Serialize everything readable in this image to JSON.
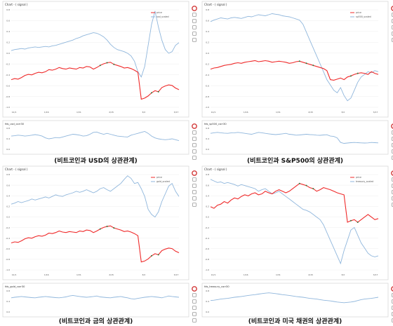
{
  "colors": {
    "price": "#ef2a2a",
    "scaled": "#8fb6dc",
    "grid": "#eeeeee",
    "frame": "#d9d9d9",
    "marker": "#2c7a3a",
    "tool_red": "#d33a3a"
  },
  "toolbar_icons": [
    "bokeh-logo-icon",
    "pan-icon",
    "box-zoom-icon",
    "wheel-zoom-icon",
    "save-icon",
    "reset-icon"
  ],
  "chart_data": [
    {
      "type": "line",
      "title": "Chart - ( signal )",
      "caption": "(비트코인과 USD의 상관관계)",
      "legend": {
        "placement": "top-right",
        "entries": [
          "price",
          "usd_scaled"
        ]
      },
      "x_ticks": [
        "12/1",
        "1/16",
        "1/31",
        "2/15",
        "3/2",
        "3/17"
      ],
      "y_ticks": [
        "0.8",
        "0.6",
        "0.4",
        "0.2",
        "0.0",
        "-0.2",
        "-0.4",
        "-0.6",
        "-0.8",
        "-1.0"
      ],
      "ylim": [
        -1.0,
        0.9
      ],
      "series": [
        {
          "name": "price",
          "values": [
            -0.45,
            -0.43,
            -0.44,
            -0.41,
            -0.37,
            -0.35,
            -0.36,
            -0.33,
            -0.31,
            -0.32,
            -0.3,
            -0.26,
            -0.27,
            -0.25,
            -0.22,
            -0.24,
            -0.25,
            -0.23,
            -0.24,
            -0.25,
            -0.22,
            -0.23,
            -0.2,
            -0.21,
            -0.25,
            -0.22,
            -0.18,
            -0.15,
            -0.13,
            -0.12,
            -0.16,
            -0.18,
            -0.2,
            -0.23,
            -0.22,
            -0.24,
            -0.27,
            -0.31,
            -0.82,
            -0.8,
            -0.76,
            -0.7,
            -0.66,
            -0.68,
            -0.6,
            -0.57,
            -0.55,
            -0.56,
            -0.61,
            -0.64
          ]
        },
        {
          "name": "usd_scaled",
          "values": [
            0.1,
            0.12,
            0.13,
            0.14,
            0.13,
            0.15,
            0.16,
            0.17,
            0.16,
            0.17,
            0.18,
            0.17,
            0.19,
            0.2,
            0.22,
            0.24,
            0.26,
            0.28,
            0.3,
            0.33,
            0.35,
            0.38,
            0.4,
            0.42,
            0.44,
            0.43,
            0.4,
            0.36,
            0.3,
            0.22,
            0.16,
            0.12,
            0.1,
            0.08,
            0.05,
            0.0,
            -0.1,
            -0.3,
            -0.4,
            -0.2,
            0.2,
            0.6,
            0.85,
            0.55,
            0.3,
            0.12,
            0.05,
            0.08,
            0.2,
            0.25
          ]
        }
      ],
      "sub_title": "fds_usd_corr30",
      "sub_ylim": [
        -0.4,
        0.9
      ],
      "sub_y_ticks": [
        "0.8",
        "0.4",
        "0.0"
      ],
      "sub_series": {
        "name": "fds_usd_corr30",
        "values": [
          0.4,
          0.42,
          0.45,
          0.43,
          0.4,
          0.42,
          0.45,
          0.48,
          0.45,
          0.4,
          0.3,
          0.25,
          0.28,
          0.32,
          0.3,
          0.35,
          0.4,
          0.45,
          0.5,
          0.48,
          0.45,
          0.4,
          0.42,
          0.5,
          0.6,
          0.62,
          0.55,
          0.5,
          0.55,
          0.5,
          0.45,
          0.4,
          0.38,
          0.36,
          0.35,
          0.45,
          0.5,
          0.55,
          0.6,
          0.65,
          0.55,
          0.4,
          0.3,
          0.25,
          0.22,
          0.2,
          0.22,
          0.25,
          0.2,
          0.15
        ]
      }
    },
    {
      "type": "line",
      "title": "Chart - ( signal )",
      "caption": "(비트코인과 S&P500의 상관관계)",
      "legend": {
        "placement": "top-right",
        "entries": [
          "price",
          "sp500_scaled"
        ]
      },
      "x_ticks": [
        "12/1",
        "1/16",
        "1/31",
        "2/15",
        "3/2",
        "3/17"
      ],
      "y_ticks": [
        "0.8",
        "0.6",
        "0.4",
        "0.2",
        "0.0",
        "-0.2",
        "-0.4",
        "-0.6",
        "-0.8",
        "-1.0"
      ],
      "ylim": [
        -1.0,
        0.9
      ],
      "series": [
        {
          "name": "price",
          "values": [
            -0.25,
            -0.23,
            -0.22,
            -0.2,
            -0.18,
            -0.17,
            -0.16,
            -0.14,
            -0.13,
            -0.14,
            -0.12,
            -0.11,
            -0.1,
            -0.09,
            -0.11,
            -0.1,
            -0.09,
            -0.1,
            -0.12,
            -0.11,
            -0.1,
            -0.11,
            -0.12,
            -0.14,
            -0.13,
            -0.11,
            -0.1,
            -0.12,
            -0.14,
            -0.16,
            -0.18,
            -0.2,
            -0.22,
            -0.24,
            -0.28,
            -0.45,
            -0.46,
            -0.44,
            -0.42,
            -0.45,
            -0.4,
            -0.38,
            -0.35,
            -0.33,
            -0.32,
            -0.33,
            -0.35,
            -0.3,
            -0.33,
            -0.35
          ]
        },
        {
          "name": "sp500_scaled",
          "values": [
            0.65,
            0.68,
            0.7,
            0.72,
            0.71,
            0.7,
            0.72,
            0.73,
            0.72,
            0.71,
            0.73,
            0.75,
            0.74,
            0.76,
            0.78,
            0.77,
            0.76,
            0.78,
            0.8,
            0.79,
            0.78,
            0.76,
            0.75,
            0.74,
            0.72,
            0.7,
            0.68,
            0.6,
            0.45,
            0.3,
            0.15,
            0.0,
            -0.15,
            -0.3,
            -0.45,
            -0.55,
            -0.65,
            -0.7,
            -0.6,
            -0.75,
            -0.85,
            -0.8,
            -0.65,
            -0.5,
            -0.4,
            -0.35,
            -0.3,
            -0.32,
            -0.28,
            -0.3
          ]
        }
      ],
      "sub_title": "fds_sp500_corr30",
      "sub_ylim": [
        -0.4,
        0.9
      ],
      "sub_y_ticks": [
        "0.8",
        "0.4",
        "0.0"
      ],
      "sub_series": {
        "name": "fds_sp500_corr30",
        "values": [
          0.55,
          0.58,
          0.6,
          0.58,
          0.56,
          0.55,
          0.57,
          0.58,
          0.6,
          0.58,
          0.55,
          0.52,
          0.5,
          0.55,
          0.6,
          0.58,
          0.55,
          0.52,
          0.5,
          0.48,
          0.5,
          0.52,
          0.55,
          0.5,
          0.48,
          0.45,
          0.46,
          0.48,
          0.5,
          0.48,
          0.47,
          0.45,
          0.44,
          0.46,
          0.47,
          0.4,
          0.38,
          0.3,
          0.05,
          0.0,
          0.02,
          0.04,
          0.05,
          0.04,
          0.03,
          0.02,
          0.03,
          0.05,
          0.04,
          0.03
        ]
      }
    },
    {
      "type": "line",
      "title": "Chart - ( signal )",
      "caption": "(비트코인과 금의 상관관계)",
      "legend": {
        "placement": "top-right",
        "entries": [
          "price",
          "gold_scaled"
        ]
      },
      "x_ticks": [
        "12/1",
        "1/16",
        "1/31",
        "2/15",
        "3/2",
        "3/17"
      ],
      "y_ticks": [
        "0.8",
        "0.6",
        "0.4",
        "0.2",
        "0.0",
        "-0.2",
        "-0.4",
        "-0.6",
        "-0.8",
        "-1.0"
      ],
      "ylim": [
        -1.0,
        0.9
      ],
      "series": [
        {
          "name": "price",
          "values": [
            -0.45,
            -0.43,
            -0.44,
            -0.41,
            -0.37,
            -0.35,
            -0.36,
            -0.33,
            -0.31,
            -0.32,
            -0.3,
            -0.26,
            -0.27,
            -0.25,
            -0.22,
            -0.24,
            -0.25,
            -0.23,
            -0.24,
            -0.25,
            -0.22,
            -0.23,
            -0.2,
            -0.21,
            -0.25,
            -0.22,
            -0.18,
            -0.15,
            -0.13,
            -0.12,
            -0.16,
            -0.18,
            -0.2,
            -0.23,
            -0.22,
            -0.24,
            -0.27,
            -0.31,
            -0.82,
            -0.8,
            -0.76,
            -0.7,
            -0.66,
            -0.68,
            -0.6,
            -0.57,
            -0.55,
            -0.56,
            -0.61,
            -0.64
          ]
        },
        {
          "name": "gold_scaled",
          "values": [
            0.3,
            0.32,
            0.35,
            0.33,
            0.35,
            0.37,
            0.4,
            0.38,
            0.4,
            0.42,
            0.44,
            0.42,
            0.45,
            0.48,
            0.46,
            0.45,
            0.48,
            0.5,
            0.52,
            0.55,
            0.53,
            0.55,
            0.58,
            0.55,
            0.52,
            0.55,
            0.6,
            0.62,
            0.58,
            0.55,
            0.6,
            0.65,
            0.7,
            0.78,
            0.85,
            0.8,
            0.7,
            0.72,
            0.6,
            0.45,
            0.2,
            0.1,
            0.05,
            0.15,
            0.35,
            0.5,
            0.65,
            0.7,
            0.55,
            0.45
          ]
        }
      ],
      "sub_title": "fds_gold_corr30",
      "sub_ylim": [
        -0.4,
        0.9
      ],
      "sub_y_ticks": [
        "0.8",
        "0.4",
        "0.0"
      ],
      "sub_series": {
        "name": "fds_gold_corr30",
        "values": [
          0.45,
          0.48,
          0.5,
          0.52,
          0.5,
          0.48,
          0.46,
          0.45,
          0.48,
          0.5,
          0.52,
          0.5,
          0.48,
          0.46,
          0.45,
          0.47,
          0.5,
          0.55,
          0.58,
          0.55,
          0.52,
          0.5,
          0.48,
          0.5,
          0.52,
          0.55,
          0.5,
          0.48,
          0.46,
          0.45,
          0.48,
          0.5,
          0.52,
          0.48,
          0.45,
          0.4,
          0.38,
          0.42,
          0.45,
          0.48,
          0.5,
          0.52,
          0.5,
          0.48,
          0.45,
          0.5,
          0.55,
          0.52,
          0.5,
          0.48
        ]
      }
    },
    {
      "type": "line",
      "title": "Chart - ( signal )",
      "caption": "(비트코인과 미국 채권의 상관관계)",
      "legend": {
        "placement": "top-right",
        "entries": [
          "price",
          "treasury_scaled"
        ]
      },
      "x_ticks": [
        "12/1",
        "1/16",
        "1/31",
        "2/15",
        "3/2",
        "3/17"
      ],
      "y_ticks": [
        "0.8",
        "0.6",
        "0.4",
        "0.2",
        "0.0",
        "-0.2",
        "-0.4",
        "-0.6",
        "-0.8",
        "-1.0"
      ],
      "ylim": [
        -1.0,
        0.9
      ],
      "series": [
        {
          "name": "price",
          "values": [
            0.25,
            0.22,
            0.28,
            0.3,
            0.35,
            0.32,
            0.38,
            0.42,
            0.4,
            0.45,
            0.48,
            0.46,
            0.5,
            0.52,
            0.48,
            0.5,
            0.55,
            0.52,
            0.5,
            0.55,
            0.58,
            0.55,
            0.52,
            0.55,
            0.6,
            0.65,
            0.7,
            0.68,
            0.66,
            0.62,
            0.6,
            0.55,
            0.58,
            0.62,
            0.6,
            0.58,
            0.55,
            0.52,
            0.5,
            0.48,
            -0.05,
            -0.02,
            0.0,
            -0.05,
            0.0,
            0.05,
            0.1,
            0.05,
            0.0,
            0.02
          ]
        },
        {
          "name": "treasury_scaled",
          "values": [
            0.78,
            0.75,
            0.72,
            0.73,
            0.7,
            0.72,
            0.7,
            0.68,
            0.65,
            0.68,
            0.66,
            0.64,
            0.62,
            0.6,
            0.55,
            0.58,
            0.6,
            0.55,
            0.5,
            0.52,
            0.55,
            0.5,
            0.45,
            0.4,
            0.35,
            0.3,
            0.25,
            0.2,
            0.18,
            0.15,
            0.1,
            0.05,
            0.0,
            -0.1,
            -0.25,
            -0.4,
            -0.55,
            -0.7,
            -0.85,
            -0.6,
            -0.4,
            -0.2,
            -0.15,
            -0.3,
            -0.45,
            -0.55,
            -0.65,
            -0.7,
            -0.72,
            -0.7
          ]
        }
      ],
      "sub_title": "fds_treasury_corr30",
      "sub_ylim": [
        -0.4,
        0.9
      ],
      "sub_y_ticks": [
        "0.8",
        "0.4",
        "0.0"
      ],
      "sub_series": {
        "name": "fds_treasury_corr30",
        "values": [
          0.3,
          0.32,
          0.35,
          0.38,
          0.4,
          0.42,
          0.45,
          0.48,
          0.5,
          0.52,
          0.55,
          0.58,
          0.6,
          0.62,
          0.65,
          0.68,
          0.7,
          0.72,
          0.7,
          0.68,
          0.65,
          0.62,
          0.6,
          0.58,
          0.55,
          0.52,
          0.5,
          0.48,
          0.45,
          0.42,
          0.4,
          0.38,
          0.35,
          0.32,
          0.3,
          0.28,
          0.25,
          0.22,
          0.2,
          0.18,
          0.2,
          0.22,
          0.25,
          0.3,
          0.35,
          0.38,
          0.4,
          0.42,
          0.45,
          0.48
        ]
      }
    }
  ]
}
